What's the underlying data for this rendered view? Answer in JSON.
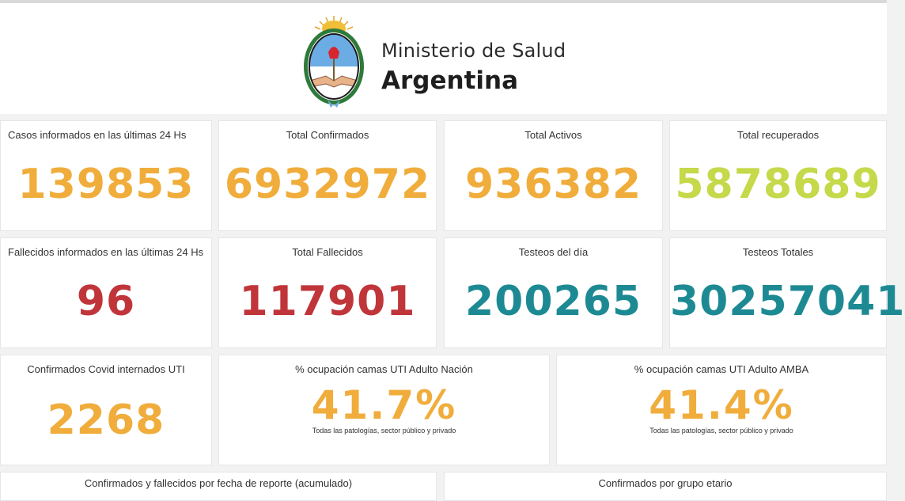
{
  "header": {
    "ministry_line1": "Ministerio de Salud",
    "ministry_line2": "Argentina",
    "logo_icon": "argentina-coat-of-arms-icon"
  },
  "colors": {
    "orange": "#f0ad3c",
    "green": "#c5d94a",
    "red": "#c0353a",
    "teal": "#1d8a93"
  },
  "stats": {
    "casos_24h": {
      "label": "Casos informados en las últimas 24 Hs",
      "value": "139853"
    },
    "total_confirmados": {
      "label": "Total Confirmados",
      "value": "6932972"
    },
    "total_activos": {
      "label": "Total Activos",
      "value": "936382"
    },
    "total_recuperados": {
      "label": "Total recuperados",
      "value": "5878689"
    },
    "fallecidos_24h": {
      "label": "Fallecidos informados en las últimas 24 Hs",
      "value": "96"
    },
    "total_fallecidos": {
      "label": "Total Fallecidos",
      "value": "117901"
    },
    "testeos_dia": {
      "label": "Testeos del día",
      "value": "200265"
    },
    "testeos_totales": {
      "label": "Testeos Totales",
      "value": "30257041"
    },
    "internados_uti": {
      "label": "Confirmados Covid internados UTI",
      "value": "2268"
    },
    "ocupacion_nacion": {
      "label": "% ocupación camas UTI Adulto Nación",
      "value": "41.7%",
      "note": "Todas las patologías, sector público y privado"
    },
    "ocupacion_amba": {
      "label": "% ocupación camas UTI Adulto AMBA",
      "value": "41.4%",
      "note": "Todas las patologías, sector público y privado"
    }
  },
  "sections": {
    "fecha_reporte": "Confirmados y fallecidos por fecha de reporte (acumulado)",
    "grupo_etario": "Confirmados por grupo etario"
  }
}
